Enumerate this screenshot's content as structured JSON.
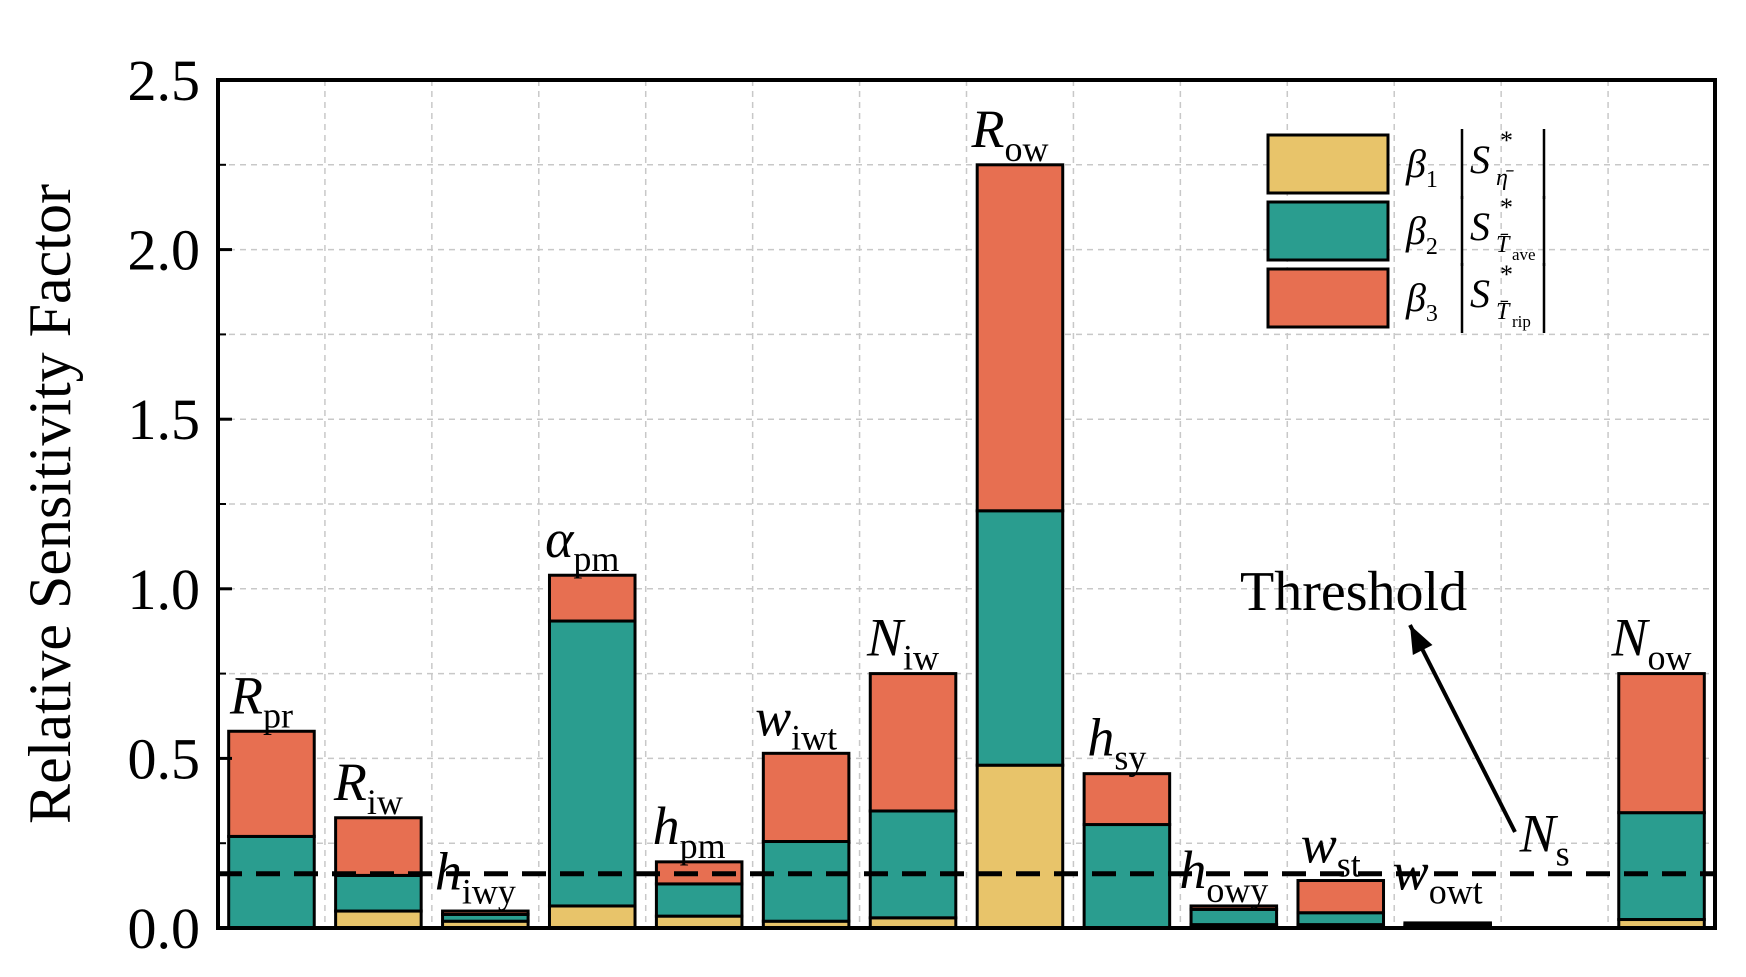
{
  "chart_data": {
    "type": "bar",
    "stacked": true,
    "ylabel": "Relative Sensitivity Factor",
    "ylim": [
      0,
      2.5
    ],
    "yticks": [
      "0.0",
      "0.5",
      "1.0",
      "1.5",
      "2.0",
      "2.5"
    ],
    "grid": true,
    "legend_position": "top-right",
    "categories": [
      {
        "main": "R",
        "sub": "pr"
      },
      {
        "main": "R",
        "sub": "iw"
      },
      {
        "main": "h",
        "sub": "iwy"
      },
      {
        "main": "α",
        "sub": "pm"
      },
      {
        "main": "h",
        "sub": "pm"
      },
      {
        "main": "w",
        "sub": "iwt"
      },
      {
        "main": "N",
        "sub": "iw"
      },
      {
        "main": "R",
        "sub": "ow"
      },
      {
        "main": "h",
        "sub": "sy"
      },
      {
        "main": "h",
        "sub": "owy"
      },
      {
        "main": "w",
        "sub": "st"
      },
      {
        "main": "w",
        "sub": "owt"
      },
      {
        "main": "N",
        "sub": "s"
      },
      {
        "main": "N",
        "sub": "ow"
      }
    ],
    "series": [
      {
        "name": "β1|S*η̄|",
        "color": "#E8C46A",
        "values": [
          0.0,
          0.05,
          0.02,
          0.065,
          0.035,
          0.02,
          0.03,
          0.48,
          0.0,
          0.01,
          0.01,
          0.005,
          0.0,
          0.025
        ]
      },
      {
        "name": "β2|S*T̄ave|",
        "color": "#2A9D8F",
        "values": [
          0.27,
          0.105,
          0.02,
          0.84,
          0.095,
          0.235,
          0.315,
          0.75,
          0.305,
          0.045,
          0.035,
          0.005,
          0.0,
          0.315
        ]
      },
      {
        "name": "β3|S*T̄rip|",
        "color": "#E76F51",
        "values": [
          0.31,
          0.17,
          0.01,
          0.135,
          0.065,
          0.26,
          0.405,
          1.02,
          0.15,
          0.01,
          0.095,
          0.005,
          0.0,
          0.41
        ]
      }
    ],
    "threshold": 0.16,
    "annotation": "Threshold"
  },
  "legend": [
    {
      "beta": "β",
      "beta_sub": "1",
      "s": "S",
      "s_sup": "*",
      "s_sub": "η̄",
      "color": "#E8C46A"
    },
    {
      "beta": "β",
      "beta_sub": "2",
      "s": "S",
      "s_sup": "*",
      "s_sub": "T̄",
      "s_subsub": "ave",
      "color": "#2A9D8F"
    },
    {
      "beta": "β",
      "beta_sub": "3",
      "s": "S",
      "s_sup": "*",
      "s_sub": "T̄",
      "s_subsub": "rip",
      "color": "#E76F51"
    }
  ]
}
